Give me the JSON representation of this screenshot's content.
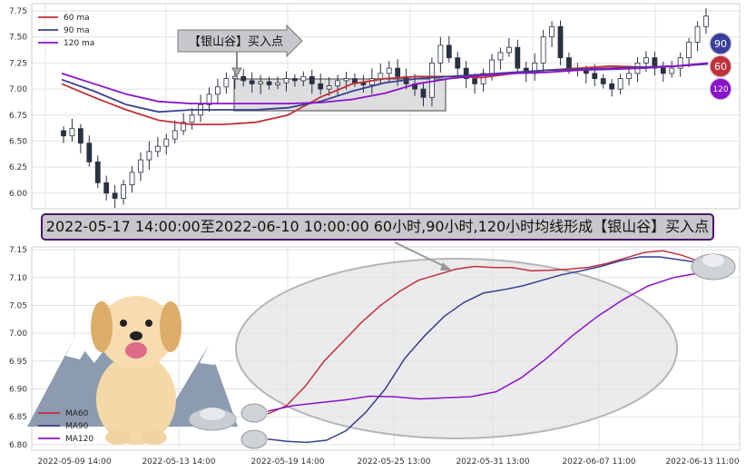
{
  "colors": {
    "ma60": "#c0313b",
    "ma90": "#3a3f8f",
    "ma120": "#8a13c9",
    "candle": "#2b3140",
    "highlight_fill": "#d9d9db",
    "banner_border": "#4b1669"
  },
  "banner_text": "2022-05-17 14:00:00至2022-06-10 10:00:00 60小时,90小时,120小时均线形成【银山谷】买入点",
  "top_chart": {
    "callout_label": "【银山谷】买入点",
    "badges": [
      "90",
      "60",
      "120"
    ],
    "legend": [
      "60 ma",
      "90 ma",
      "120 ma"
    ]
  },
  "bottom_chart": {
    "legend": [
      "MA60",
      "MA90",
      "MA120"
    ]
  },
  "chart_data": [
    {
      "type": "line",
      "title": "",
      "legend_placement": "top-left",
      "grid": true,
      "ylim": [
        5.85,
        7.82
      ],
      "yticks": [
        6.0,
        6.25,
        6.5,
        6.75,
        7.0,
        7.25,
        7.5,
        7.75
      ],
      "ytick_labels": [
        "6.00",
        "6.25",
        "6.50",
        "6.75",
        "7.00",
        "7.25",
        "7.50",
        "7.75"
      ],
      "price_close_approx": [
        6.55,
        6.62,
        6.48,
        6.3,
        6.1,
        6.0,
        5.95,
        6.08,
        6.2,
        6.32,
        6.4,
        6.45,
        6.52,
        6.6,
        6.68,
        6.75,
        6.85,
        6.95,
        7.02,
        7.1,
        7.12,
        7.08,
        7.05,
        7.07,
        7.04,
        7.06,
        7.1,
        7.08,
        7.12,
        7.05,
        7.0,
        7.03,
        7.08,
        7.1,
        7.06,
        7.04,
        7.1,
        7.15,
        7.2,
        7.12,
        7.05,
        7.0,
        6.92,
        7.25,
        7.42,
        7.3,
        7.2,
        7.1,
        7.05,
        7.15,
        7.28,
        7.35,
        7.4,
        7.2,
        7.15,
        7.25,
        7.5,
        7.6,
        7.3,
        7.2,
        7.18,
        7.15,
        7.1,
        7.05,
        7.0,
        7.1,
        7.15,
        7.25,
        7.3,
        7.2,
        7.15,
        7.2,
        7.3,
        7.45,
        7.6,
        7.7
      ],
      "series": [
        {
          "name": "60 ma",
          "values": [
            7.05,
            6.92,
            6.8,
            6.7,
            6.66,
            6.66,
            6.68,
            6.75,
            6.92,
            7.05,
            7.1,
            7.12,
            7.12,
            7.11,
            7.15,
            7.18,
            7.2,
            7.22,
            7.21,
            7.22,
            7.24
          ]
        },
        {
          "name": "90 ma",
          "values": [
            7.09,
            6.98,
            6.85,
            6.78,
            6.8,
            6.8,
            6.8,
            6.82,
            6.88,
            6.98,
            7.06,
            7.1,
            7.12,
            7.14,
            7.16,
            7.18,
            7.19,
            7.2,
            7.21,
            7.22,
            7.24
          ]
        },
        {
          "name": "120 ma",
          "values": [
            7.15,
            7.05,
            6.95,
            6.88,
            6.86,
            6.86,
            6.86,
            6.86,
            6.87,
            6.9,
            6.96,
            7.05,
            7.1,
            7.13,
            7.15,
            7.16,
            7.18,
            7.19,
            7.2,
            7.22,
            7.25
          ]
        }
      ]
    },
    {
      "type": "line",
      "title": "",
      "legend_placement": "bottom-left",
      "grid": true,
      "ylim": [
        6.79,
        7.155
      ],
      "yticks": [
        6.8,
        6.85,
        6.9,
        6.95,
        7.0,
        7.05,
        7.1,
        7.15
      ],
      "ytick_labels": [
        "6.80",
        "6.85",
        "6.90",
        "6.95",
        "7.00",
        "7.05",
        "7.10",
        "7.15"
      ],
      "x_tick_labels": [
        "2022-05-09 14:00",
        "2022-05-13 14:00",
        "2022-05-19 14:00",
        "2022-05-25 13:00",
        "2022-05-31 13:00",
        "2022-06-07 11:00",
        "2022-06-13 11:00"
      ],
      "series": [
        {
          "name": "MA60",
          "values": [
            6.855,
            6.87,
            6.905,
            6.95,
            6.985,
            7.02,
            7.05,
            7.075,
            7.095,
            7.105,
            7.115,
            7.12,
            7.118,
            7.118,
            7.112,
            7.113,
            7.115,
            7.118,
            7.125,
            7.135,
            7.145,
            7.148,
            7.14,
            7.128
          ]
        },
        {
          "name": "MA90",
          "values": [
            6.81,
            6.806,
            6.804,
            6.808,
            6.825,
            6.858,
            6.9,
            6.955,
            6.995,
            7.03,
            7.055,
            7.072,
            7.078,
            7.085,
            7.095,
            7.105,
            7.112,
            7.12,
            7.13,
            7.137,
            7.137,
            7.132,
            7.127
          ]
        },
        {
          "name": "MA120",
          "values": [
            6.86,
            6.87,
            6.875,
            6.88,
            6.887,
            6.886,
            6.882,
            6.884,
            6.886,
            6.895,
            6.92,
            6.955,
            6.995,
            7.03,
            7.06,
            7.085,
            7.1,
            7.108
          ]
        }
      ]
    }
  ]
}
